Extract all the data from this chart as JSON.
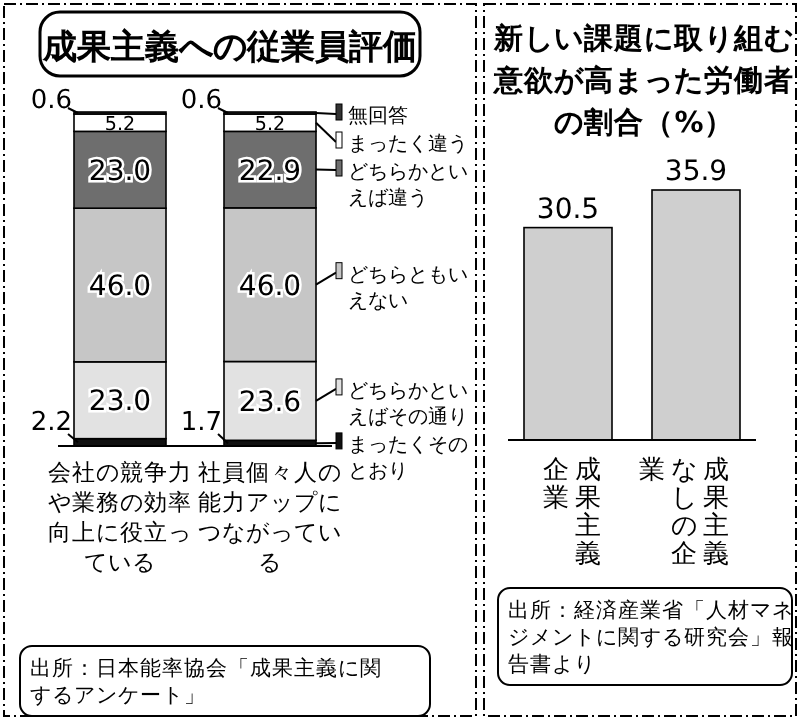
{
  "chart_data": [
    {
      "type": "bar",
      "stacked": true,
      "title": "成果主義への従業員評価",
      "categories": [
        "会社の競争力や業務の効率向上に役立っている",
        "社員個々人の能力アップにつながっている"
      ],
      "legend": "right",
      "series": [
        {
          "name": "まったくそのとおり",
          "color": "#111111",
          "values": [
            2.2,
            1.7
          ],
          "value_labels": [
            "2.2",
            "1.7"
          ]
        },
        {
          "name": "どちらかといえばその通り",
          "color": "#e2e2e2",
          "values": [
            23.0,
            23.6
          ],
          "value_labels": [
            "23.0",
            "23.6"
          ]
        },
        {
          "name": "どちらともいえない",
          "color": "#c6c6c6",
          "values": [
            46.0,
            46.0
          ],
          "value_labels": [
            "46.0",
            "46.0"
          ]
        },
        {
          "name": "どちらかといえば違う",
          "color": "#6e6e6e",
          "values": [
            23.0,
            22.9
          ],
          "value_labels": [
            "23.0",
            "22.9"
          ]
        },
        {
          "name": "まったく違う",
          "color": "#ffffff",
          "values": [
            5.2,
            5.2
          ],
          "value_labels": [
            "5.2",
            "5.2"
          ]
        },
        {
          "name": "無回答",
          "color": "#333333",
          "values": [
            0.6,
            0.6
          ],
          "value_labels": [
            "0.6",
            "0.6"
          ]
        }
      ],
      "annotations": [
        "出所：日本能率協会「成果主義に関するアンケート」"
      ]
    },
    {
      "type": "bar",
      "title": "新しい課題に取り組む意欲が高まった労働者の割合（%）",
      "categories": [
        "成果主義企業",
        "成果主義なしの企業"
      ],
      "values": [
        30.5,
        35.9
      ],
      "color": "#cfcfcf",
      "data_labels": true,
      "annotations": [
        "出所：経済産業省「人材マネジメントに関する研究会」報告書より"
      ]
    }
  ]
}
